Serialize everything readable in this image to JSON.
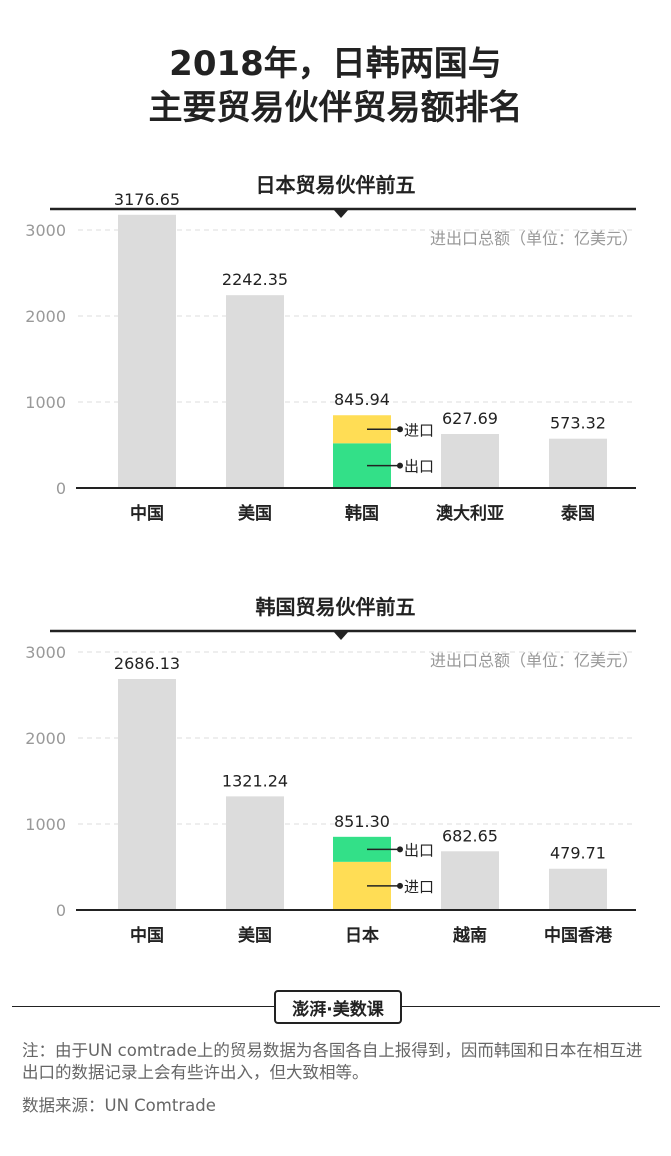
{
  "title_line1": "2018年，日韩两国与",
  "title_line2": "主要贸易伙伴贸易额排名",
  "colors": {
    "bar": "#dcdcdc",
    "import": "#ffdd55",
    "export": "#33e088",
    "axis": "#222222",
    "grid": "#dddddd"
  },
  "chart_data": [
    {
      "type": "bar",
      "title": "日本贸易伙伴前五",
      "unit_note": "进出口总额（单位：亿美元）",
      "ylim": [
        0,
        3000
      ],
      "yticks": [
        0,
        1000,
        2000,
        3000
      ],
      "categories": [
        "中国",
        "美国",
        "韩国",
        "澳大利亚",
        "泰国"
      ],
      "values": [
        3176.65,
        2242.35,
        845.94,
        627.69,
        573.32
      ],
      "value_labels": [
        "3176.65",
        "2242.35",
        "845.94",
        "627.69",
        "573.32"
      ],
      "highlight_index": 2,
      "stack": [
        {
          "name": "出口",
          "value": 520
        },
        {
          "name": "进口",
          "value": 326
        }
      ]
    },
    {
      "type": "bar",
      "title": "韩国贸易伙伴前五",
      "unit_note": "进出口总额（单位：亿美元）",
      "ylim": [
        0,
        3000
      ],
      "yticks": [
        0,
        1000,
        2000,
        3000
      ],
      "categories": [
        "中国",
        "美国",
        "日本",
        "越南",
        "中国香港"
      ],
      "values": [
        2686.13,
        1321.24,
        851.3,
        682.65,
        479.71
      ],
      "value_labels": [
        "2686.13",
        "1321.24",
        "851.30",
        "682.65",
        "479.71"
      ],
      "highlight_index": 2,
      "stack": [
        {
          "name": "进口",
          "value": 560
        },
        {
          "name": "出口",
          "value": 291
        }
      ]
    }
  ],
  "footer": {
    "logo": "澎湃·美数课",
    "note": "注：由于UN comtrade上的贸易数据为各国各自上报得到，因而韩国和日本在相互进出口的数据记录上会有些许出入，但大致相等。",
    "source": "数据来源：UN Comtrade"
  }
}
